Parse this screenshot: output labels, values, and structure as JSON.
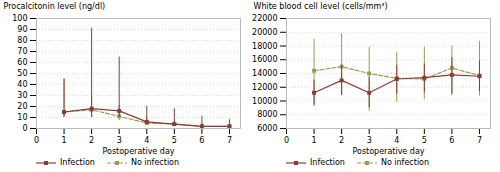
{
  "chart_data": [
    {
      "type": "line",
      "xlabel": "Postoperative day",
      "ylabel": "Procalcitonin level (ng/dl)",
      "x": [
        1,
        2,
        3,
        4,
        5,
        6,
        7
      ],
      "xlim": [
        0,
        7.4
      ],
      "xticks": [
        0,
        1,
        2,
        3,
        4,
        5,
        6,
        7
      ],
      "ylim": [
        0,
        100
      ],
      "yticks": [
        0,
        10,
        20,
        30,
        40,
        50,
        60,
        70,
        80,
        90,
        100
      ],
      "grid": true,
      "legend": "lower left",
      "series": [
        {
          "name": "Infection",
          "color": "#8B3A3A",
          "line_style": "solid",
          "marker": "square",
          "values": [
            15,
            18,
            16,
            6,
            4,
            2,
            2
          ],
          "yerr_lo": [
            5,
            8,
            6,
            2,
            1,
            0.8,
            0.8
          ],
          "yerr_hi": [
            30,
            73,
            49,
            14,
            14,
            9,
            6
          ]
        },
        {
          "name": "No infection",
          "color": "#9B9B50",
          "line_style": "dashed",
          "marker": "square",
          "values": [
            15,
            17,
            11,
            5,
            4,
            2,
            2
          ],
          "yerr_lo": [
            5,
            7,
            4,
            2,
            1.5,
            1,
            0.8
          ],
          "yerr_hi": [
            30,
            12,
            10,
            5,
            3,
            2,
            2
          ]
        }
      ]
    },
    {
      "type": "line",
      "xlabel": "Postoperative day",
      "ylabel": "White blood cell level (cells/mm³)",
      "x": [
        1,
        2,
        3,
        4,
        5,
        6,
        7
      ],
      "xlim": [
        0,
        7.4
      ],
      "xticks": [
        0,
        1,
        2,
        3,
        4,
        5,
        6,
        7
      ],
      "ylim": [
        6000,
        22000
      ],
      "yticks": [
        6000,
        8000,
        10000,
        12000,
        14000,
        16000,
        18000,
        20000,
        22000
      ],
      "grid": true,
      "legend": "lower left",
      "series": [
        {
          "name": "Infection",
          "color": "#8B3A3A",
          "line_style": "solid",
          "marker": "square",
          "values": [
            11200,
            13000,
            11200,
            13200,
            13400,
            13800,
            13600
          ],
          "yerr_lo": [
            1800,
            2200,
            2200,
            2200,
            2200,
            2800,
            2200
          ],
          "yerr_hi": [
            1800,
            2200,
            2200,
            2000,
            2000,
            2500,
            2200
          ]
        },
        {
          "name": "No infection",
          "color": "#9B9B50",
          "line_style": "dashed",
          "marker": "square",
          "values": [
            14400,
            15000,
            14000,
            13300,
            13200,
            14800,
            13700
          ],
          "yerr_lo": [
            5200,
            4200,
            5500,
            3500,
            3000,
            4000,
            3000
          ],
          "yerr_hi": [
            4600,
            4800,
            3800,
            3800,
            4600,
            3200,
            5000
          ]
        }
      ]
    }
  ]
}
